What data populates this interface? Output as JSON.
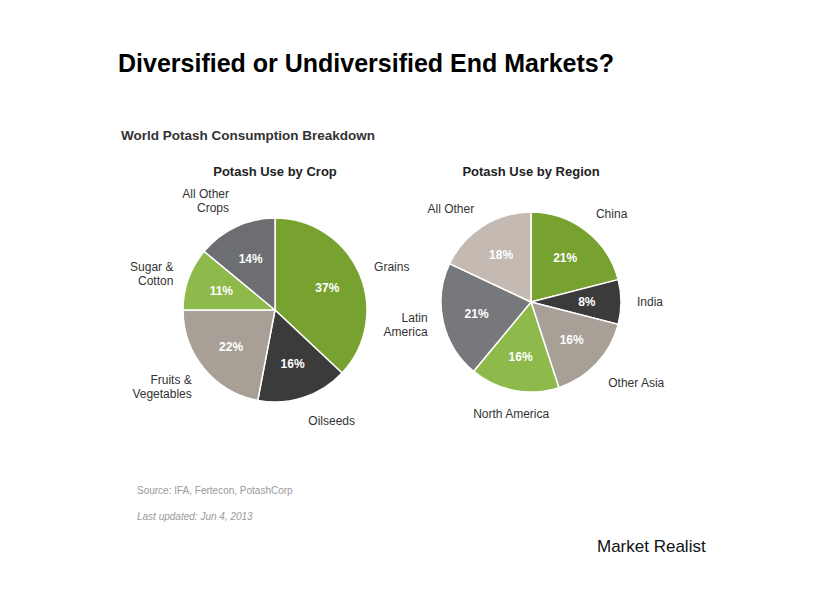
{
  "header": {
    "title": "Diversified or Undiversified End Markets?",
    "subtitle": "World Potash Consumption Breakdown"
  },
  "chart_data": [
    {
      "type": "pie",
      "title": "Potash Use by Crop",
      "categories": [
        "Grains",
        "Oilseeds",
        "Fruits &\nVegetables",
        "Sugar &\nCotton",
        "All Other\nCrops"
      ],
      "values": [
        37,
        16,
        22,
        11,
        14
      ],
      "value_labels": [
        "37%",
        "16%",
        "22%",
        "11%",
        "14%"
      ],
      "data_labels": true,
      "colors": [
        "#78a22f",
        "#3b3b3b",
        "#a89f96",
        "#8dba4a",
        "#6d6e71"
      ]
    },
    {
      "type": "pie",
      "title": "Potash Use by Region",
      "categories": [
        "China",
        "India",
        "Other Asia",
        "North America",
        "Latin\nAmerica",
        "All Other"
      ],
      "values": [
        21,
        8,
        16,
        16,
        21,
        18
      ],
      "value_labels": [
        "21%",
        "8%",
        "16%",
        "16%",
        "21%",
        "18%"
      ],
      "data_labels": true,
      "colors": [
        "#78a22f",
        "#3b3b3b",
        "#a89f96",
        "#8dba4a",
        "#77787b",
        "#c5bab1"
      ]
    }
  ],
  "footer": {
    "source": "Source: IFA, Fertecon, PotashCorp",
    "updated": "Last updated: Jun 4, 2013",
    "brand": "Market Realist"
  }
}
